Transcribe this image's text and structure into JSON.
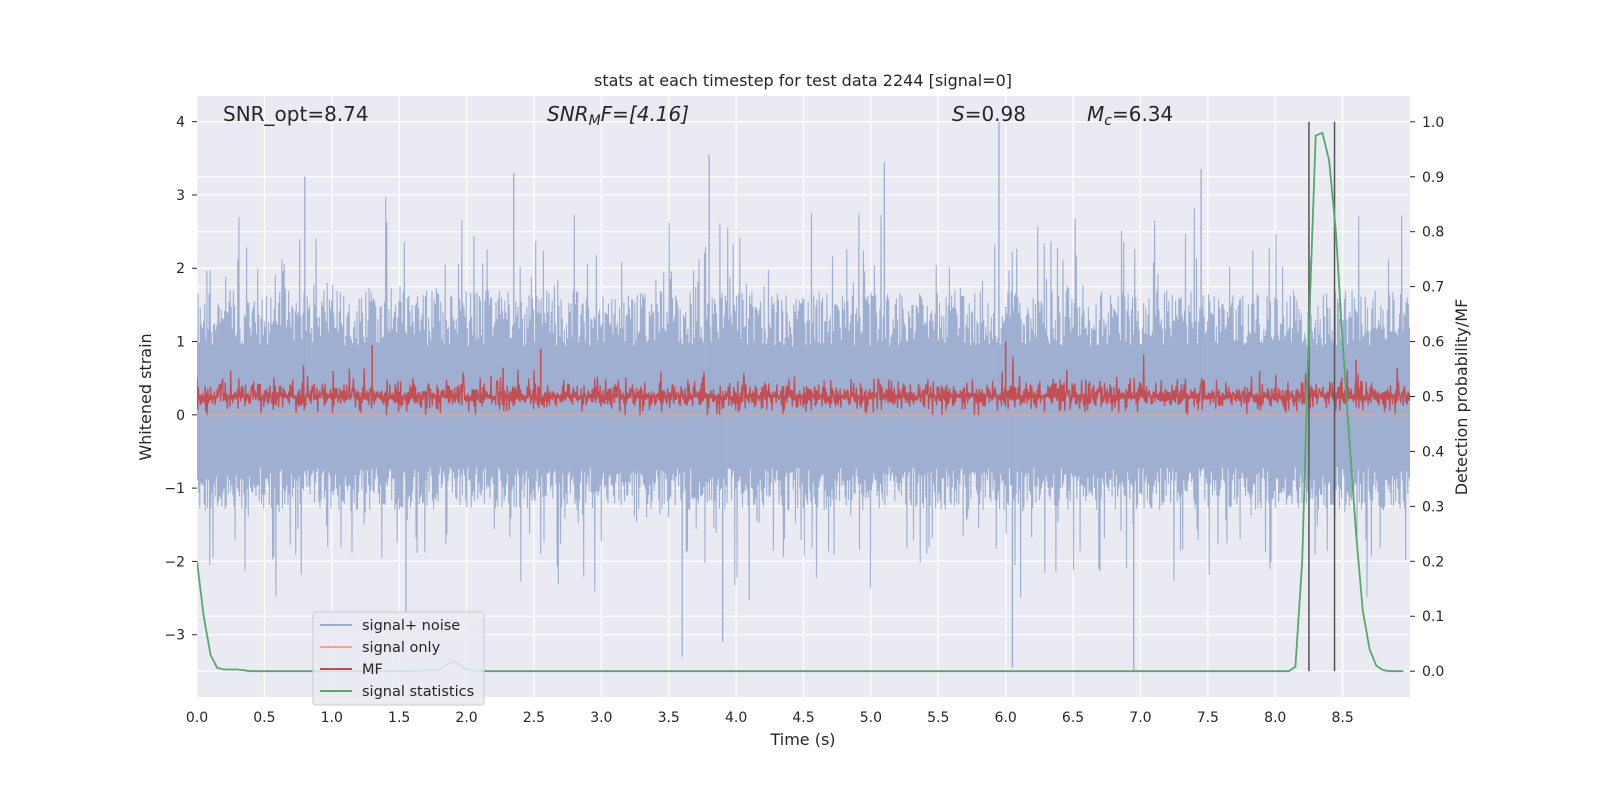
{
  "chart_data": {
    "type": "line",
    "title": "stats at each timestep for test data 2244 [signal=0]",
    "xlabel": "Time (s)",
    "ylabel_left": "Whitened strain",
    "ylabel_right": "Detection probability/MF",
    "xlim": [
      0.0,
      9.0
    ],
    "ylim_left": [
      -3.85,
      4.35
    ],
    "ylim_right": [
      -0.047,
      1.047
    ],
    "xticks": [
      "0.0",
      "0.5",
      "1.0",
      "1.5",
      "2.0",
      "2.5",
      "3.0",
      "3.5",
      "4.0",
      "4.5",
      "5.0",
      "5.5",
      "6.0",
      "6.5",
      "7.0",
      "7.5",
      "8.0",
      "8.5"
    ],
    "yticks_left": [
      "4",
      "3",
      "2",
      "1",
      "0",
      "−1",
      "−2",
      "−3"
    ],
    "yticks_right": [
      "1.0",
      "0.9",
      "0.8",
      "0.7",
      "0.6",
      "0.5",
      "0.4",
      "0.3",
      "0.2",
      "0.1",
      "0.0"
    ],
    "grid": true,
    "legend_position": "lower-left",
    "annotations": {
      "snr_opt": "SNR_opt=8.74",
      "snr_mf_base": "SNR",
      "snr_mf_sub": "M",
      "snr_mf_rest": "F=[4.16]",
      "s_base": "S",
      "s_rest": "=0.98",
      "mc_base": "M",
      "mc_sub": "c",
      "mc_rest": "=6.34"
    },
    "vertical_lines_x": [
      8.25,
      8.44
    ],
    "series": [
      {
        "name": "signal+ noise",
        "axis": "left",
        "color": "#9aaccf",
        "description_values": {
          "envelope_upper_typical": 1.7,
          "envelope_lower_typical": -1.3,
          "peak_max": 4.0,
          "peak_min": -3.5
        },
        "notable_peaks": [
          [
            0.8,
            3.25
          ],
          [
            2.35,
            3.3
          ],
          [
            3.8,
            3.55
          ],
          [
            5.1,
            3.45
          ],
          [
            5.95,
            4.0
          ],
          [
            7.45,
            3.35
          ],
          [
            3.6,
            -3.3
          ],
          [
            3.9,
            -3.1
          ],
          [
            6.05,
            -3.45
          ],
          [
            6.95,
            -3.5
          ],
          [
            1.55,
            -2.7
          ]
        ]
      },
      {
        "name": "signal only",
        "axis": "left",
        "color": "#e8a889",
        "x": [
          0.0,
          9.0
        ],
        "y": [
          0.0,
          0.0
        ]
      },
      {
        "name": "MF",
        "axis": "left",
        "color": "#c44e52",
        "description_values": {
          "baseline": 0.25,
          "typical_upper": 0.6,
          "typical_lower": 0.0,
          "peak_max": 1.0
        },
        "notable_peaks": [
          [
            1.3,
            0.95
          ],
          [
            2.55,
            0.9
          ],
          [
            6.0,
            1.0
          ],
          [
            8.6,
            0.75
          ]
        ]
      },
      {
        "name": "signal statistics",
        "axis": "right",
        "color": "#55a868",
        "x": [
          0.0,
          0.05,
          0.1,
          0.15,
          0.2,
          0.3,
          0.4,
          0.6,
          1.0,
          1.5,
          1.8,
          1.85,
          1.9,
          1.95,
          2.0,
          2.1,
          2.5,
          3.0,
          4.0,
          5.0,
          6.0,
          7.0,
          8.0,
          8.1,
          8.15,
          8.2,
          8.25,
          8.3,
          8.35,
          8.4,
          8.45,
          8.5,
          8.55,
          8.6,
          8.65,
          8.7,
          8.75,
          8.8,
          8.85,
          8.9,
          8.95
        ],
        "y": [
          0.2,
          0.1,
          0.03,
          0.006,
          0.003,
          0.003,
          0.0,
          0.0,
          0.0,
          0.0,
          0.002,
          0.012,
          0.018,
          0.012,
          0.003,
          0.0,
          0.0,
          0.0,
          0.0,
          0.0,
          0.0,
          0.0,
          0.0,
          0.0,
          0.008,
          0.2,
          0.62,
          0.975,
          0.98,
          0.93,
          0.8,
          0.6,
          0.42,
          0.25,
          0.11,
          0.04,
          0.01,
          0.002,
          0.0,
          0.0,
          0.0
        ]
      }
    ],
    "colors": {
      "plot_background": "#eaeaf2",
      "grid": "#ffffff",
      "vertical_line": "#555555",
      "text": "#262626"
    }
  }
}
